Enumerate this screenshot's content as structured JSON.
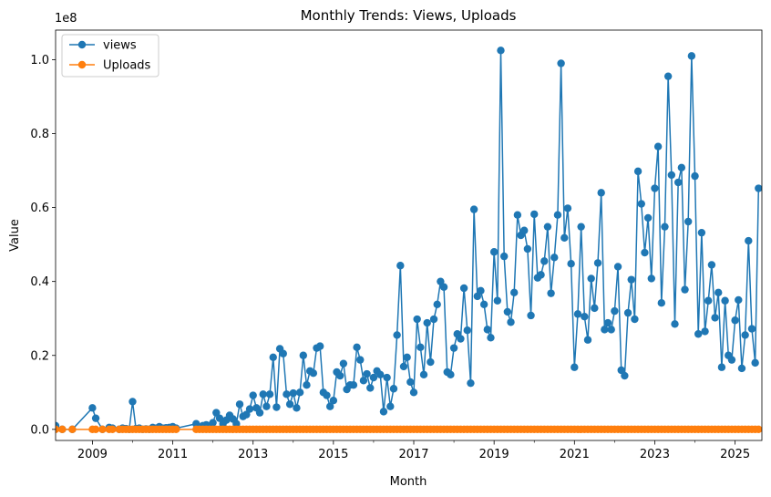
{
  "chart_data": {
    "type": "line",
    "title": "Monthly Trends: Views, Uploads",
    "xlabel": "Month",
    "ylabel": "Value",
    "y_offset_label": "1e8",
    "xlim": [
      "2008-02",
      "2025-09"
    ],
    "ylim": [
      -0.03,
      1.08
    ],
    "y_ticks": [
      0.0,
      0.2,
      0.4,
      0.6,
      0.8,
      1.0
    ],
    "y_tick_labels": [
      "0.0",
      "0.2",
      "0.4",
      "0.6",
      "0.8",
      "1.0"
    ],
    "x_ticks": [
      "2009-01",
      "2011-01",
      "2013-01",
      "2015-01",
      "2017-01",
      "2019-01",
      "2021-01",
      "2023-01",
      "2025-01"
    ],
    "x_tick_labels": [
      "2009",
      "2011",
      "2013",
      "2015",
      "2017",
      "2019",
      "2021",
      "2023",
      "2025"
    ],
    "grid": false,
    "legend_position": "top-left",
    "series": [
      {
        "name": "views",
        "color": "#1f77b4",
        "points": [
          [
            "2008-02",
            0.01
          ],
          [
            "2008-04",
            0.0
          ],
          [
            "2008-07",
            0.0
          ],
          [
            "2009-01",
            0.058
          ],
          [
            "2009-02",
            0.03
          ],
          [
            "2009-04",
            0.0
          ],
          [
            "2009-06",
            0.005
          ],
          [
            "2009-07",
            0.003
          ],
          [
            "2009-09",
            0.0
          ],
          [
            "2009-10",
            0.003
          ],
          [
            "2009-11",
            0.002
          ],
          [
            "2009-12",
            0.0
          ],
          [
            "2010-01",
            0.075
          ],
          [
            "2010-02",
            0.002
          ],
          [
            "2010-03",
            0.003
          ],
          [
            "2010-04",
            0.0
          ],
          [
            "2010-05",
            0.001
          ],
          [
            "2010-06",
            0.0
          ],
          [
            "2010-07",
            0.005
          ],
          [
            "2010-08",
            0.003
          ],
          [
            "2010-09",
            0.007
          ],
          [
            "2010-10",
            0.003
          ],
          [
            "2010-11",
            0.004
          ],
          [
            "2010-12",
            0.005
          ],
          [
            "2011-01",
            0.007
          ],
          [
            "2011-02",
            0.003
          ],
          [
            "2011-08",
            0.015
          ],
          [
            "2011-09",
            0.005
          ],
          [
            "2011-10",
            0.01
          ],
          [
            "2011-11",
            0.012
          ],
          [
            "2011-12",
            0.01
          ],
          [
            "2012-01",
            0.018
          ],
          [
            "2012-02",
            0.045
          ],
          [
            "2012-03",
            0.03
          ],
          [
            "2012-04",
            0.015
          ],
          [
            "2012-05",
            0.025
          ],
          [
            "2012-06",
            0.038
          ],
          [
            "2012-07",
            0.028
          ],
          [
            "2012-08",
            0.015
          ],
          [
            "2012-09",
            0.068
          ],
          [
            "2012-10",
            0.035
          ],
          [
            "2012-11",
            0.04
          ],
          [
            "2012-12",
            0.055
          ],
          [
            "2013-01",
            0.092
          ],
          [
            "2013-02",
            0.058
          ],
          [
            "2013-03",
            0.045
          ],
          [
            "2013-04",
            0.095
          ],
          [
            "2013-05",
            0.062
          ],
          [
            "2013-06",
            0.095
          ],
          [
            "2013-07",
            0.195
          ],
          [
            "2013-08",
            0.06
          ],
          [
            "2013-09",
            0.218
          ],
          [
            "2013-10",
            0.205
          ],
          [
            "2013-11",
            0.095
          ],
          [
            "2013-12",
            0.068
          ],
          [
            "2014-01",
            0.098
          ],
          [
            "2014-02",
            0.058
          ],
          [
            "2014-03",
            0.1
          ],
          [
            "2014-04",
            0.2
          ],
          [
            "2014-05",
            0.12
          ],
          [
            "2014-06",
            0.158
          ],
          [
            "2014-07",
            0.152
          ],
          [
            "2014-08",
            0.22
          ],
          [
            "2014-09",
            0.225
          ],
          [
            "2014-10",
            0.1
          ],
          [
            "2014-11",
            0.092
          ],
          [
            "2014-12",
            0.062
          ],
          [
            "2015-01",
            0.078
          ],
          [
            "2015-02",
            0.155
          ],
          [
            "2015-03",
            0.145
          ],
          [
            "2015-04",
            0.178
          ],
          [
            "2015-05",
            0.108
          ],
          [
            "2015-06",
            0.12
          ],
          [
            "2015-07",
            0.12
          ],
          [
            "2015-08",
            0.222
          ],
          [
            "2015-09",
            0.188
          ],
          [
            "2015-10",
            0.132
          ],
          [
            "2015-11",
            0.15
          ],
          [
            "2015-12",
            0.112
          ],
          [
            "2016-01",
            0.14
          ],
          [
            "2016-02",
            0.158
          ],
          [
            "2016-03",
            0.148
          ],
          [
            "2016-04",
            0.048
          ],
          [
            "2016-05",
            0.14
          ],
          [
            "2016-06",
            0.062
          ],
          [
            "2016-07",
            0.11
          ],
          [
            "2016-08",
            0.255
          ],
          [
            "2016-09",
            0.443
          ],
          [
            "2016-10",
            0.17
          ],
          [
            "2016-11",
            0.195
          ],
          [
            "2016-12",
            0.128
          ],
          [
            "2017-01",
            0.1
          ],
          [
            "2017-02",
            0.298
          ],
          [
            "2017-03",
            0.222
          ],
          [
            "2017-04",
            0.148
          ],
          [
            "2017-05",
            0.288
          ],
          [
            "2017-06",
            0.182
          ],
          [
            "2017-07",
            0.298
          ],
          [
            "2017-08",
            0.338
          ],
          [
            "2017-09",
            0.4
          ],
          [
            "2017-10",
            0.385
          ],
          [
            "2017-11",
            0.155
          ],
          [
            "2017-12",
            0.148
          ],
          [
            "2018-01",
            0.22
          ],
          [
            "2018-02",
            0.258
          ],
          [
            "2018-03",
            0.245
          ],
          [
            "2018-04",
            0.382
          ],
          [
            "2018-05",
            0.268
          ],
          [
            "2018-06",
            0.125
          ],
          [
            "2018-07",
            0.595
          ],
          [
            "2018-08",
            0.36
          ],
          [
            "2018-09",
            0.375
          ],
          [
            "2018-10",
            0.338
          ],
          [
            "2018-11",
            0.27
          ],
          [
            "2018-12",
            0.248
          ],
          [
            "2019-01",
            0.48
          ],
          [
            "2019-02",
            0.348
          ],
          [
            "2019-03",
            1.025
          ],
          [
            "2019-04",
            0.468
          ],
          [
            "2019-05",
            0.318
          ],
          [
            "2019-06",
            0.29
          ],
          [
            "2019-07",
            0.37
          ],
          [
            "2019-08",
            0.58
          ],
          [
            "2019-09",
            0.525
          ],
          [
            "2019-10",
            0.538
          ],
          [
            "2019-11",
            0.488
          ],
          [
            "2019-12",
            0.308
          ],
          [
            "2020-01",
            0.582
          ],
          [
            "2020-02",
            0.41
          ],
          [
            "2020-03",
            0.418
          ],
          [
            "2020-04",
            0.455
          ],
          [
            "2020-05",
            0.548
          ],
          [
            "2020-06",
            0.368
          ],
          [
            "2020-07",
            0.465
          ],
          [
            "2020-08",
            0.58
          ],
          [
            "2020-09",
            0.99
          ],
          [
            "2020-10",
            0.518
          ],
          [
            "2020-11",
            0.598
          ],
          [
            "2020-12",
            0.448
          ],
          [
            "2021-01",
            0.168
          ],
          [
            "2021-02",
            0.312
          ],
          [
            "2021-03",
            0.548
          ],
          [
            "2021-04",
            0.305
          ],
          [
            "2021-05",
            0.242
          ],
          [
            "2021-06",
            0.408
          ],
          [
            "2021-07",
            0.328
          ],
          [
            "2021-08",
            0.45
          ],
          [
            "2021-09",
            0.64
          ],
          [
            "2021-10",
            0.27
          ],
          [
            "2021-11",
            0.288
          ],
          [
            "2021-12",
            0.27
          ],
          [
            "2022-01",
            0.32
          ],
          [
            "2022-02",
            0.44
          ],
          [
            "2022-03",
            0.16
          ],
          [
            "2022-04",
            0.145
          ],
          [
            "2022-05",
            0.315
          ],
          [
            "2022-06",
            0.405
          ],
          [
            "2022-07",
            0.298
          ],
          [
            "2022-08",
            0.698
          ],
          [
            "2022-09",
            0.61
          ],
          [
            "2022-10",
            0.478
          ],
          [
            "2022-11",
            0.572
          ],
          [
            "2022-12",
            0.408
          ],
          [
            "2023-01",
            0.652
          ],
          [
            "2023-02",
            0.765
          ],
          [
            "2023-03",
            0.342
          ],
          [
            "2023-04",
            0.548
          ],
          [
            "2023-05",
            0.955
          ],
          [
            "2023-06",
            0.688
          ],
          [
            "2023-07",
            0.285
          ],
          [
            "2023-08",
            0.668
          ],
          [
            "2023-09",
            0.708
          ],
          [
            "2023-10",
            0.378
          ],
          [
            "2023-11",
            0.562
          ],
          [
            "2023-12",
            1.01
          ],
          [
            "2024-01",
            0.685
          ],
          [
            "2024-02",
            0.258
          ],
          [
            "2024-03",
            0.532
          ],
          [
            "2024-04",
            0.265
          ],
          [
            "2024-05",
            0.348
          ],
          [
            "2024-06",
            0.445
          ],
          [
            "2024-07",
            0.302
          ],
          [
            "2024-08",
            0.37
          ],
          [
            "2024-09",
            0.168
          ],
          [
            "2024-10",
            0.348
          ],
          [
            "2024-11",
            0.2
          ],
          [
            "2024-12",
            0.188
          ],
          [
            "2025-01",
            0.295
          ],
          [
            "2025-02",
            0.35
          ],
          [
            "2025-03",
            0.165
          ],
          [
            "2025-04",
            0.255
          ],
          [
            "2025-05",
            0.51
          ],
          [
            "2025-06",
            0.272
          ],
          [
            "2025-07",
            0.18
          ],
          [
            "2025-08",
            0.652
          ]
        ]
      },
      {
        "name": "Uploads",
        "color": "#ff7f0e",
        "points_note": "",
        "constant_value": 0.0,
        "months": [
          "2008-02",
          "2008-04",
          "2008-07",
          "2009-01",
          "2009-02",
          "2009-04",
          "2009-06",
          "2009-07",
          "2009-09",
          "2009-10",
          "2009-11",
          "2009-12",
          "2010-01",
          "2010-02",
          "2010-03",
          "2010-04",
          "2010-05",
          "2010-06",
          "2010-07",
          "2010-08",
          "2010-09",
          "2010-10",
          "2010-11",
          "2010-12",
          "2011-01",
          "2011-02",
          "2011-08",
          "2011-09",
          "2011-10",
          "2011-11",
          "2011-12"
        ],
        "continuous_from": "2012-01",
        "continuous_to": "2025-08"
      }
    ]
  }
}
